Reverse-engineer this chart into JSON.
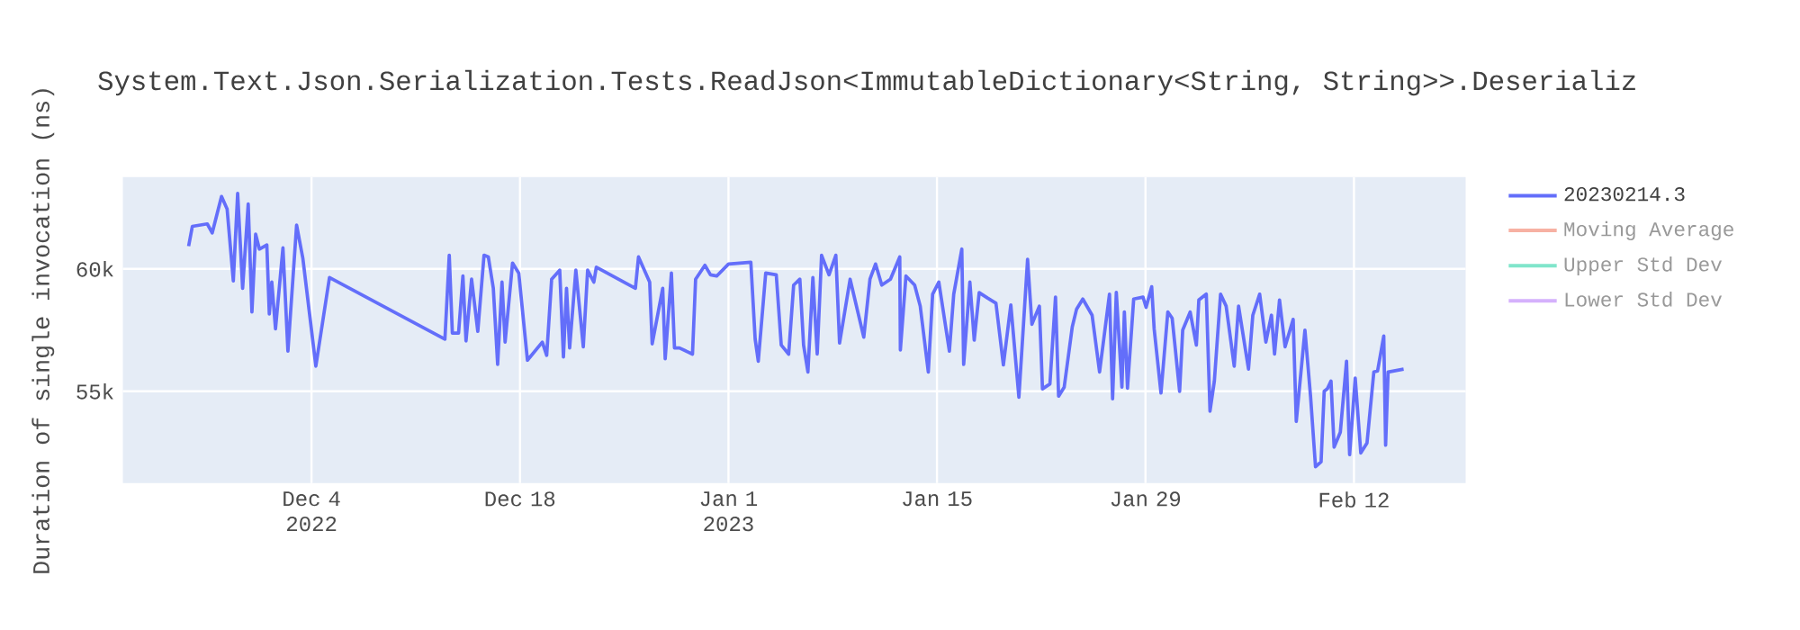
{
  "chart_data": {
    "type": "line",
    "title": "System.Text.Json.Serialization.Tests.ReadJson<ImmutableDictionary<String, String>>.Deserializ",
    "ylabel": "Duration of single invocation (ns)",
    "x": [
      "2022-11-25T18:00",
      "2022-11-26T00:00",
      "2022-11-27T00:00",
      "2022-11-27T08:00",
      "2022-11-27T23:00",
      "2022-11-28T08:00",
      "2022-11-28T18:00",
      "2022-11-29T01:00",
      "2022-11-29T09:00",
      "2022-11-29T18:00",
      "2022-11-30T00:00",
      "2022-11-30T06:00",
      "2022-11-30T12:00",
      "2022-12-01T00:00",
      "2022-12-01T04:00",
      "2022-12-01T08:00",
      "2022-12-01T14:00",
      "2022-12-02T02:00",
      "2022-12-02T10:00",
      "2022-12-03T00:00",
      "2022-12-03T10:00",
      "2022-12-04T07:00",
      "2022-12-05T05:00",
      "2022-12-12T23:00",
      "2022-12-13T06:00",
      "2022-12-13T11:00",
      "2022-12-13T21:00",
      "2022-12-14T04:00",
      "2022-12-14T09:00",
      "2022-12-14T18:00",
      "2022-12-15T04:00",
      "2022-12-15T14:00",
      "2022-12-15T21:00",
      "2022-12-16T05:00",
      "2022-12-16T12:00",
      "2022-12-16T19:00",
      "2022-12-17T00:00",
      "2022-12-17T12:00",
      "2022-12-17T22:00",
      "2022-12-18T12:00",
      "2022-12-19T12:00",
      "2022-12-19T19:00",
      "2022-12-20T03:00",
      "2022-12-20T16:00",
      "2022-12-20T22:00",
      "2022-12-21T03:00",
      "2022-12-21T08:00",
      "2022-12-21T18:00",
      "2022-12-22T06:00",
      "2022-12-22T13:00",
      "2022-12-22T23:00",
      "2022-12-23T03:00",
      "2022-12-25T18:00",
      "2022-12-25T23:00",
      "2022-12-26T17:00",
      "2022-12-26T21:00",
      "2022-12-27T14:00",
      "2022-12-27T18:00",
      "2022-12-28T04:00",
      "2022-12-28T09:00",
      "2022-12-28T17:00",
      "2022-12-29T14:00",
      "2022-12-29T19:00",
      "2022-12-30T10:00",
      "2022-12-30T19:00",
      "2022-12-31T05:00",
      "2023-01-01T00:00",
      "2023-01-02T12:00",
      "2023-01-02T19:00",
      "2023-01-03T00:00",
      "2023-01-03T12:00",
      "2023-01-04T05:00",
      "2023-01-04T13:00",
      "2023-01-05T01:00",
      "2023-01-05T09:00",
      "2023-01-05T19:00",
      "2023-01-06T01:00",
      "2023-01-06T08:00",
      "2023-01-06T16:00",
      "2023-01-06T23:00",
      "2023-01-07T06:00",
      "2023-01-07T18:00",
      "2023-01-08T05:00",
      "2023-01-08T11:00",
      "2023-01-09T04:00",
      "2023-01-10T02:00",
      "2023-01-10T12:00",
      "2023-01-10T21:00",
      "2023-01-11T07:00",
      "2023-01-11T21:00",
      "2023-01-12T12:00",
      "2023-01-12T13:00",
      "2023-01-12T22:00",
      "2023-01-13T12:00",
      "2023-01-13T21:00",
      "2023-01-14T10:00",
      "2023-01-14T17:00",
      "2023-01-15T03:00",
      "2023-01-15T20:00",
      "2023-01-16T03:00",
      "2023-01-16T16:00",
      "2023-01-16T19:00",
      "2023-01-17T05:00",
      "2023-01-17T12:00",
      "2023-01-17T20:00",
      "2023-01-18T10:00",
      "2023-01-18T23:00",
      "2023-01-19T11:00",
      "2023-01-19T23:00",
      "2023-01-20T12:00",
      "2023-01-21T02:00",
      "2023-01-21T09:00",
      "2023-01-21T21:00",
      "2023-01-22T02:00",
      "2023-01-22T14:00",
      "2023-01-22T23:00",
      "2023-01-23T04:00",
      "2023-01-23T13:00",
      "2023-01-24T02:00",
      "2023-01-24T09:00",
      "2023-01-24T19:00",
      "2023-01-25T10:00",
      "2023-01-25T22:00",
      "2023-01-26T14:00",
      "2023-01-26T19:00",
      "2023-01-27T01:00",
      "2023-01-27T10:00",
      "2023-01-27T14:00",
      "2023-01-27T19:00",
      "2023-01-28T05:00",
      "2023-01-28T20:00",
      "2023-01-29T01:00",
      "2023-01-29T10:00",
      "2023-01-29T14:00",
      "2023-01-30T01:00",
      "2023-01-30T12:00",
      "2023-01-30T19:00",
      "2023-01-31T07:00",
      "2023-01-31T12:00",
      "2023-02-01T00:00",
      "2023-02-01T10:00",
      "2023-02-01T14:00",
      "2023-02-02T02:00",
      "2023-02-02T08:00",
      "2023-02-02T15:00",
      "2023-02-03T01:00",
      "2023-02-03T10:00",
      "2023-02-03T23:00",
      "2023-02-04T06:00",
      "2023-02-04T22:00",
      "2023-02-05T05:00",
      "2023-02-05T16:00",
      "2023-02-06T02:00",
      "2023-02-06T11:00",
      "2023-02-06T16:00",
      "2023-02-07T00:00",
      "2023-02-07T09:00",
      "2023-02-07T22:00",
      "2023-02-08T03:00",
      "2023-02-08T17:00",
      "2023-02-09T02:00",
      "2023-02-09T10:00",
      "2023-02-09T19:00",
      "2023-02-10T00:00",
      "2023-02-10T05:00",
      "2023-02-10T11:00",
      "2023-02-10T16:00",
      "2023-02-11T02:00",
      "2023-02-11T12:00",
      "2023-02-11T17:00",
      "2023-02-12T02:00",
      "2023-02-12T11:00",
      "2023-02-12T21:00",
      "2023-02-13T08:00",
      "2023-02-13T14:00",
      "2023-02-14T00:00",
      "2023-02-14T03:00",
      "2023-02-14T07:00",
      "2023-02-15T08:00"
    ],
    "series": [
      {
        "name": "20230214.3",
        "color": "#636efa",
        "values": [
          60930,
          61740,
          61840,
          61470,
          62960,
          62450,
          59510,
          63090,
          59210,
          62650,
          58240,
          61420,
          60810,
          60980,
          58160,
          59460,
          57550,
          60860,
          56640,
          61790,
          60440,
          56030,
          59650,
          57130,
          60560,
          57380,
          57380,
          59710,
          57060,
          59580,
          57450,
          60560,
          60490,
          59210,
          56100,
          59460,
          57010,
          60240,
          59830,
          56270,
          57010,
          56470,
          59580,
          59950,
          56400,
          59210,
          56770,
          59950,
          56820,
          59950,
          59460,
          60070,
          59210,
          60490,
          59460,
          56940,
          59210,
          56330,
          59830,
          56770,
          56770,
          56520,
          59580,
          60150,
          59760,
          59710,
          60200,
          60270,
          57130,
          56230,
          59830,
          59760,
          56890,
          56520,
          59340,
          59580,
          56890,
          55790,
          59650,
          56520,
          60560,
          59760,
          60560,
          56970,
          59580,
          57210,
          59580,
          60200,
          59340,
          59580,
          60490,
          56690,
          59710,
          59340,
          58480,
          55790,
          58970,
          59460,
          56640,
          58970,
          60810,
          56100,
          59460,
          57090,
          59030,
          58800,
          58600,
          56080,
          58530,
          54760,
          60390,
          57740,
          58480,
          55100,
          55300,
          58850,
          54800,
          55170,
          57630,
          58360,
          58770,
          58110,
          55790,
          58970,
          54690,
          59040,
          55170,
          58240,
          55130,
          58770,
          58850,
          58430,
          59270,
          57550,
          54930,
          58240,
          57990,
          55000,
          57500,
          58240,
          56890,
          58730,
          58970,
          54190,
          55420,
          58970,
          58480,
          56030,
          58480,
          55910,
          58110,
          58970,
          57010,
          58110,
          56520,
          58730,
          56820,
          57940,
          53770,
          57500,
          54800,
          51920,
          52120,
          55000,
          55100,
          55420,
          52720,
          53330,
          56230,
          52410,
          55540,
          52480,
          52890,
          55790,
          55830,
          57260,
          52800,
          55790,
          55910
        ]
      },
      {
        "name": "Moving Average",
        "color": "#f7b1a3",
        "values": [
          null,
          null,
          null,
          null,
          null,
          null,
          null,
          null,
          null,
          null,
          null,
          null,
          null,
          null,
          null,
          null,
          null,
          null,
          null,
          null,
          null,
          null,
          null,
          null,
          null,
          null,
          null,
          null,
          null,
          null,
          null,
          null,
          null,
          null,
          null,
          null,
          null,
          null,
          null,
          null,
          null,
          null,
          null,
          null,
          null,
          null,
          null,
          null,
          null,
          null,
          null,
          null,
          null,
          null,
          null,
          null,
          null,
          null,
          null,
          null,
          null,
          null,
          null,
          null,
          null,
          null,
          null,
          null,
          null,
          null,
          null,
          null,
          null,
          null,
          null,
          null,
          null,
          null,
          null,
          null,
          null,
          null,
          null,
          null,
          null,
          null,
          null,
          null,
          null,
          null,
          null,
          null,
          null,
          null,
          null,
          null,
          null,
          null,
          null,
          null,
          null,
          null,
          null,
          null,
          null,
          null,
          null,
          null,
          null,
          null,
          null,
          null,
          null,
          null,
          null,
          null,
          null,
          null,
          null,
          null,
          null,
          null,
          null,
          null,
          null,
          null,
          null,
          null,
          null,
          null,
          null,
          null,
          null,
          null,
          null,
          null,
          null,
          null,
          null,
          null,
          null,
          null,
          null,
          null,
          null,
          null,
          null,
          null,
          null,
          null,
          null,
          null,
          null,
          null,
          null,
          null,
          null,
          null,
          null,
          null,
          null,
          null,
          null,
          null,
          null,
          null,
          null,
          null,
          null,
          null,
          null,
          null,
          null,
          null,
          null,
          null,
          null,
          null,
          null
        ]
      },
      {
        "name": "Upper Std Dev",
        "color": "#80e5cb",
        "values": [
          null,
          null,
          null,
          null,
          null,
          null,
          null,
          null,
          null,
          null,
          null,
          null,
          null,
          null,
          null,
          null,
          null,
          null,
          null,
          null,
          null,
          null,
          null,
          null,
          null,
          null,
          null,
          null,
          null,
          null,
          null,
          null,
          null,
          null,
          null,
          null,
          null,
          null,
          null,
          null,
          null,
          null,
          null,
          null,
          null,
          null,
          null,
          null,
          null,
          null,
          null,
          null,
          null,
          null,
          null,
          null,
          null,
          null,
          null,
          null,
          null,
          null,
          null,
          null,
          null,
          null,
          null,
          null,
          null,
          null,
          null,
          null,
          null,
          null,
          null,
          null,
          null,
          null,
          null,
          null,
          null,
          null,
          null,
          null,
          null,
          null,
          null,
          null,
          null,
          null,
          null,
          null,
          null,
          null,
          null,
          null,
          null,
          null,
          null,
          null,
          null,
          null,
          null,
          null,
          null,
          null,
          null,
          null,
          null,
          null,
          null,
          null,
          null,
          null,
          null,
          null,
          null,
          null,
          null,
          null,
          null,
          null,
          null,
          null,
          null,
          null,
          null,
          null,
          null,
          null,
          null,
          null,
          null,
          null,
          null,
          null,
          null,
          null,
          null,
          null,
          null,
          null,
          null,
          null,
          null,
          null,
          null,
          null,
          null,
          null,
          null,
          null,
          null,
          null,
          null,
          null,
          null,
          null,
          null,
          null,
          null,
          null,
          null,
          null,
          null,
          null,
          null,
          null,
          null,
          null,
          null,
          null,
          null,
          null,
          null,
          null,
          null,
          null,
          null
        ]
      },
      {
        "name": "Lower Std Dev",
        "color": "#d5b1fc",
        "values": [
          null,
          null,
          null,
          null,
          null,
          null,
          null,
          null,
          null,
          null,
          null,
          null,
          null,
          null,
          null,
          null,
          null,
          null,
          null,
          null,
          null,
          null,
          null,
          null,
          null,
          null,
          null,
          null,
          null,
          null,
          null,
          null,
          null,
          null,
          null,
          null,
          null,
          null,
          null,
          null,
          null,
          null,
          null,
          null,
          null,
          null,
          null,
          null,
          null,
          null,
          null,
          null,
          null,
          null,
          null,
          null,
          null,
          null,
          null,
          null,
          null,
          null,
          null,
          null,
          null,
          null,
          null,
          null,
          null,
          null,
          null,
          null,
          null,
          null,
          null,
          null,
          null,
          null,
          null,
          null,
          null,
          null,
          null,
          null,
          null,
          null,
          null,
          null,
          null,
          null,
          null,
          null,
          null,
          null,
          null,
          null,
          null,
          null,
          null,
          null,
          null,
          null,
          null,
          null,
          null,
          null,
          null,
          null,
          null,
          null,
          null,
          null,
          null,
          null,
          null,
          null,
          null,
          null,
          null,
          null,
          null,
          null,
          null,
          null,
          null,
          null,
          null,
          null,
          null,
          null,
          null,
          null,
          null,
          null,
          null,
          null,
          null,
          null,
          null,
          null,
          null,
          null,
          null,
          null,
          null,
          null,
          null,
          null,
          null,
          null,
          null,
          null,
          null,
          null,
          null,
          null,
          null,
          null,
          null,
          null,
          null,
          null,
          null,
          null,
          null,
          null,
          null,
          null,
          null,
          null,
          null,
          null,
          null,
          null,
          null,
          null,
          null,
          null,
          null
        ]
      }
    ],
    "xlim": [
      "2022-11-21T08:00",
      "2023-02-19T12:00"
    ],
    "xticks": [
      {
        "value": "2022-12-04",
        "label": "Dec 4 2022"
      },
      {
        "value": "2022-12-18",
        "label": "Dec 18"
      },
      {
        "value": "2023-01-01",
        "label": "Jan 1 2023"
      },
      {
        "value": "2023-01-15",
        "label": "Jan 15"
      },
      {
        "value": "2023-01-29",
        "label": "Jan 29"
      },
      {
        "value": "2023-02-12",
        "label": "Feb 12"
      }
    ],
    "ylim": [
      51250,
      63750
    ],
    "yticks": [
      {
        "value": 55000,
        "label": "55k"
      },
      {
        "value": 60000,
        "label": "60k"
      }
    ],
    "grid": true,
    "legend": "top right",
    "marker": "none",
    "line_style": "solid"
  }
}
